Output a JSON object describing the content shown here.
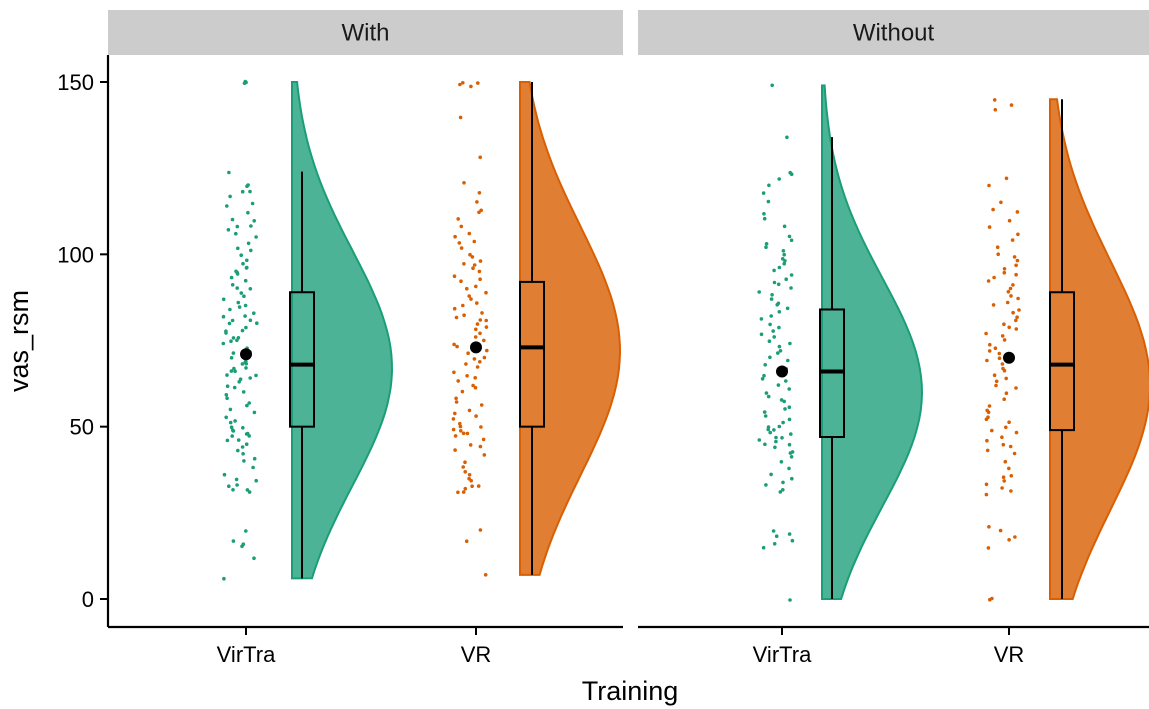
{
  "chart_data": {
    "type": "raincloud",
    "xlabel": "Training",
    "ylabel": "vas_rsm",
    "ylim": [
      -8,
      158
    ],
    "yticks": [
      0,
      50,
      100,
      150
    ],
    "categories": [
      "VirTra",
      "VR"
    ],
    "colors": {
      "VirTra": "#1b9e77",
      "VR": "#d95f02"
    },
    "fill_colors": {
      "VirTra": "#4db396",
      "VR": "#e07f34"
    },
    "panels": [
      {
        "strip_label": "With",
        "groups": [
          {
            "category": "VirTra",
            "mean": 71,
            "box": {
              "q1": 50,
              "median": 68,
              "q3": 89,
              "whisker_low": 6,
              "whisker_high": 124
            },
            "density": {
              "min": 6,
              "max": 150,
              "peak_at": 67,
              "peak_width": 34
            },
            "points": [
              150,
              150,
              150,
              124,
              120,
              120,
              118,
              118,
              117,
              115,
              114,
              112,
              110,
              110,
              108,
              108,
              107,
              106,
              105,
              103,
              102,
              101,
              100,
              98,
              97,
              96,
              96,
              95,
              95,
              94,
              93,
              92,
              91,
              90,
              90,
              89,
              88,
              87,
              86,
              85,
              85,
              84,
              83,
              82,
              82,
              81,
              81,
              80,
              80,
              79,
              78,
              78,
              77,
              76,
              76,
              75,
              75,
              74,
              73,
              72,
              71,
              71,
              70,
              70,
              69,
              69,
              68,
              68,
              67,
              67,
              66,
              66,
              65,
              65,
              64,
              64,
              63,
              62,
              61,
              60,
              59,
              58,
              57,
              56,
              55,
              54,
              53,
              52,
              51,
              50,
              50,
              49,
              49,
              48,
              48,
              47,
              47,
              46,
              46,
              45,
              44,
              43,
              42,
              41,
              40,
              38,
              36,
              35,
              34,
              33,
              33,
              32,
              32,
              31,
              20,
              17,
              16,
              15,
              12,
              6
            ]
          },
          {
            "category": "VR",
            "mean": 73,
            "box": {
              "q1": 50,
              "median": 73,
              "q3": 92,
              "whisker_low": 7,
              "whisker_high": 150
            },
            "density": {
              "min": 7,
              "max": 150,
              "peak_at": 72,
              "peak_width": 36
            },
            "points": [
              150,
              150,
              149,
              149,
              140,
              128,
              121,
              118,
              115,
              113,
              112,
              110,
              108,
              106,
              105,
              104,
              103,
              102,
              100,
              99,
              98,
              97,
              97,
              96,
              95,
              94,
              93,
              92,
              91,
              90,
              89,
              88,
              87,
              86,
              85,
              84,
              83,
              82,
              82,
              81,
              81,
              80,
              79,
              78,
              77,
              76,
              75,
              74,
              73,
              72,
              71,
              70,
              70,
              69,
              68,
              67,
              66,
              65,
              64,
              63,
              62,
              61,
              60,
              58,
              57,
              56,
              55,
              54,
              53,
              52,
              51,
              50,
              50,
              49,
              49,
              48,
              48,
              47,
              46,
              45,
              44,
              43,
              42,
              40,
              38,
              37,
              36,
              35,
              34,
              33,
              33,
              32,
              31,
              31,
              20,
              17,
              7
            ]
          }
        ]
      },
      {
        "strip_label": "Without",
        "groups": [
          {
            "category": "VirTra",
            "mean": 66,
            "box": {
              "q1": 47,
              "median": 66,
              "q3": 84,
              "whisker_low": 0,
              "whisker_high": 134
            },
            "density": {
              "min": 0,
              "max": 149,
              "peak_at": 60,
              "peak_width": 33
            },
            "points": [
              149,
              134,
              124,
              123,
              122,
              120,
              118,
              115,
              112,
              110,
              108,
              105,
              104,
              103,
              102,
              101,
              100,
              99,
              98,
              97,
              96,
              95,
              94,
              93,
              92,
              91,
              90,
              89,
              88,
              87,
              86,
              85,
              84,
              83,
              82,
              81,
              80,
              79,
              78,
              77,
              76,
              75,
              74,
              73,
              72,
              71,
              70,
              69,
              68,
              67,
              66,
              65,
              64,
              63,
              62,
              61,
              60,
              59,
              58,
              57,
              56,
              55,
              54,
              53,
              52,
              51,
              50,
              50,
              49,
              49,
              48,
              48,
              47,
              47,
              46,
              46,
              45,
              45,
              44,
              43,
              42,
              41,
              40,
              38,
              36,
              35,
              34,
              33,
              32,
              31,
              20,
              19,
              18,
              17,
              16,
              15,
              0
            ]
          },
          {
            "category": "VR",
            "mean": 70,
            "box": {
              "q1": 49,
              "median": 68,
              "q3": 89,
              "whisker_low": 0,
              "whisker_high": 145
            },
            "density": {
              "min": 0,
              "max": 145,
              "peak_at": 62,
              "peak_width": 36
            },
            "points": [
              145,
              143,
              142,
              122,
              120,
              115,
              113,
              112,
              110,
              108,
              106,
              104,
              102,
              100,
              99,
              98,
              97,
              96,
              95,
              94,
              93,
              92,
              91,
              90,
              89,
              88,
              87,
              86,
              85,
              84,
              83,
              82,
              81,
              80,
              79,
              78,
              77,
              76,
              75,
              74,
              73,
              72,
              71,
              70,
              69,
              68,
              67,
              66,
              65,
              64,
              63,
              62,
              61,
              60,
              58,
              56,
              55,
              54,
              53,
              52,
              51,
              50,
              49,
              48,
              47,
              46,
              45,
              44,
              43,
              42,
              40,
              38,
              36,
              35,
              34,
              33,
              32,
              31,
              30,
              21,
              20,
              18,
              17,
              15,
              0,
              0
            ]
          }
        ]
      }
    ]
  }
}
